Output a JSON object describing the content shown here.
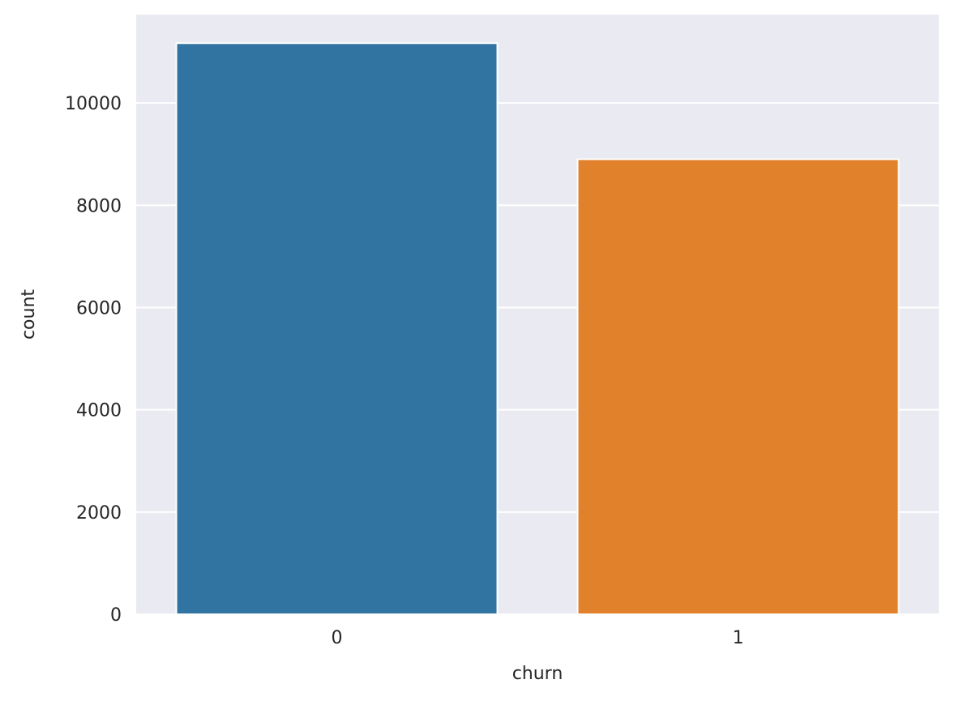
{
  "chart_data": {
    "type": "bar",
    "title": "",
    "xlabel": "churn",
    "ylabel": "count",
    "categories": [
      "0",
      "1"
    ],
    "values": [
      11170,
      8900
    ],
    "ylim": [
      0,
      11729
    ],
    "yticks": [
      0,
      2000,
      4000,
      6000,
      8000,
      10000
    ],
    "grid": true,
    "colors": [
      "#3274a1",
      "#e1812c"
    ],
    "background_color": "#eaeaf2",
    "grid_color": "#ffffff"
  }
}
